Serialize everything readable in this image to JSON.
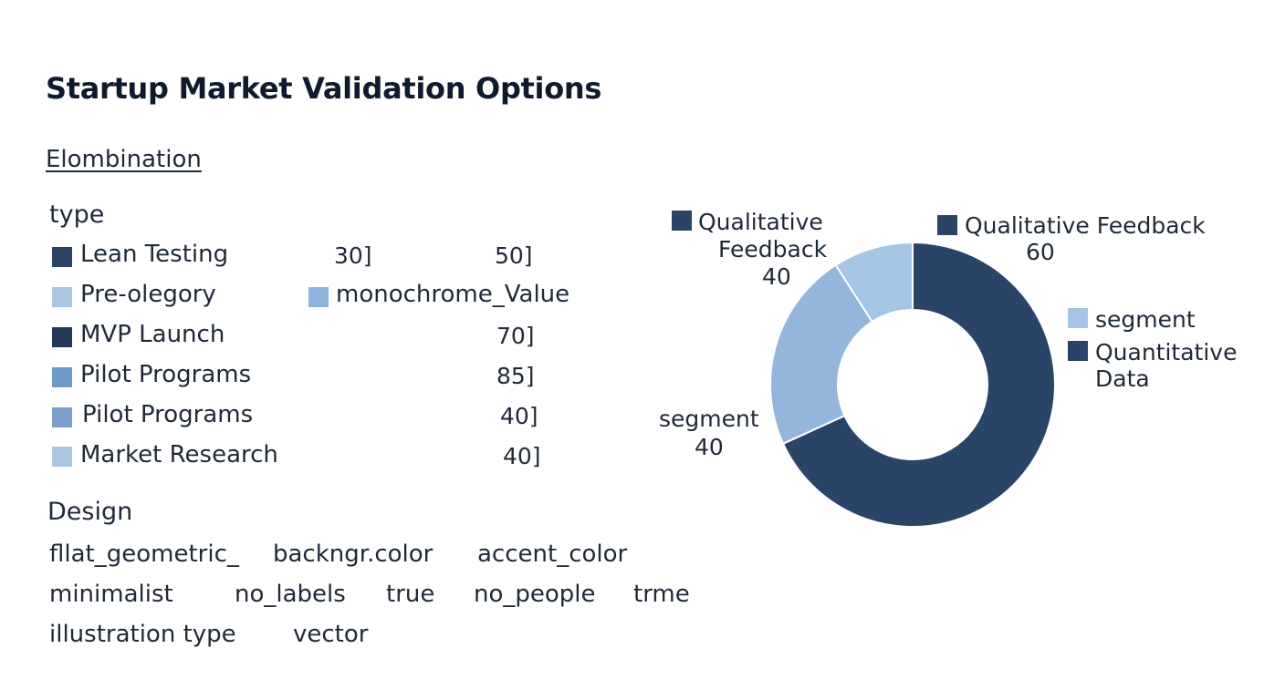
{
  "header": {
    "title": "Startup Market Validation Options",
    "subtitle": "Elombination"
  },
  "table": {
    "heading": "type",
    "rows": [
      {
        "label": "Lean Testing",
        "color": "#2b4468",
        "v1": "30]",
        "v2": "50]"
      },
      {
        "label": "Pre-olegory",
        "color": "#a9c6e2",
        "v1": "",
        "v2": "",
        "extra_color": "#8fb5dc",
        "extra_label": "monochrome_Value"
      },
      {
        "label": "MVP Launch",
        "color": "#22395c",
        "v1": "",
        "v2": "70]"
      },
      {
        "label": "Pilot Programs",
        "color": "#6f9bc6",
        "v1": "",
        "v2": "85]"
      },
      {
        "label": "Pilot Programs",
        "color": "#789fca",
        "v1": "",
        "v2": "40]"
      },
      {
        "label": "Market Research",
        "color": "#a9c6e2",
        "v1": "",
        "v2": "40]"
      }
    ]
  },
  "design": {
    "heading": "Design",
    "line1": [
      "fllat_geometric_",
      "backngr.color",
      "accent_color"
    ],
    "line2": [
      "minimalist",
      "no_labels",
      "true",
      "no_people",
      "trme"
    ],
    "line3": [
      "illustration type",
      "vector"
    ]
  },
  "chart_data": {
    "type": "pie",
    "donut": true,
    "slices": [
      {
        "value": 60,
        "color": "#2a4467"
      },
      {
        "value": 20,
        "color": "#93b6da"
      },
      {
        "value": 8,
        "color": "#a6c5e4"
      }
    ],
    "annotations": [
      {
        "text": "Qualitative",
        "text2": "Feedback",
        "value": "40",
        "color": "#2a4467"
      },
      {
        "text": "Qualitative Feedback",
        "value": "60",
        "color": "#2a4467"
      },
      {
        "text": "segment",
        "value": "40"
      }
    ],
    "legend": [
      {
        "name": "segment",
        "color": "#a6c5e4"
      },
      {
        "name": "Quantitative",
        "name2": "Data",
        "color": "#2a4467"
      }
    ]
  }
}
